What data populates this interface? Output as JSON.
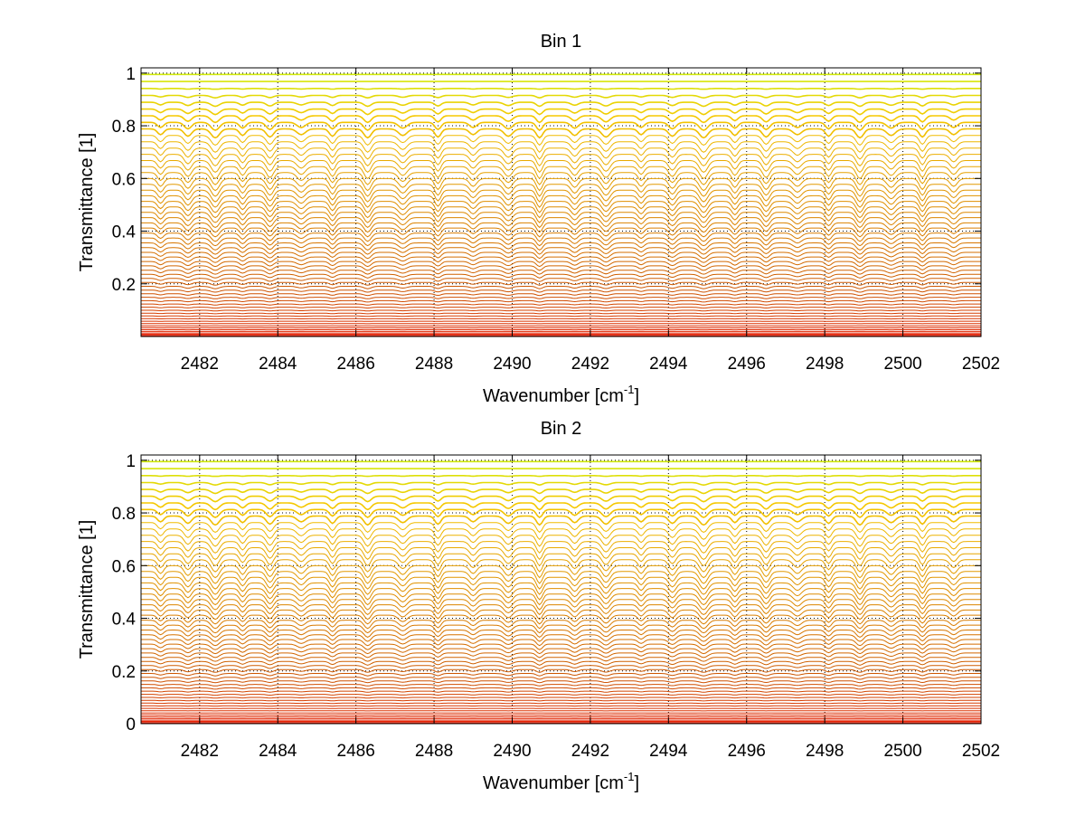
{
  "chart_data": [
    {
      "type": "line",
      "title": "Bin 1",
      "xlabel": "Wavenumber [cm",
      "xlabel_sup": "-1",
      "xlabel_end": "]",
      "ylabel": "Transmittance [1]",
      "xlim": [
        2480.5,
        2502
      ],
      "ylim": [
        0,
        1.02
      ],
      "xticks": [
        2482,
        2484,
        2486,
        2488,
        2490,
        2492,
        2494,
        2496,
        2498,
        2500,
        2502
      ],
      "yticks": [
        0.2,
        0.4,
        0.6,
        0.8,
        1
      ],
      "ytick_labels": [
        "0.2",
        "0.4",
        "0.6",
        "0.8",
        "1"
      ],
      "grid": true,
      "series_count": 60,
      "series_levels": "baseline transmittance of traces range from ~0 (red) to ~1 (yellow/green)",
      "absorption_line_positions": [
        2481.0,
        2481.7,
        2482.4,
        2483.1,
        2483.8,
        2484.6,
        2485.4,
        2486.3,
        2487.2,
        2488.1,
        2489.0,
        2489.9,
        2490.7,
        2491.6,
        2492.4,
        2493.3,
        2494.1,
        2494.9,
        2495.7,
        2496.5,
        2497.3,
        2498.1,
        2498.9,
        2499.7,
        2500.5,
        2501.3
      ]
    },
    {
      "type": "line",
      "title": "Bin 2",
      "xlabel": "Wavenumber [cm",
      "xlabel_sup": "-1",
      "xlabel_end": "]",
      "ylabel": "Transmittance [1]",
      "xlim": [
        2480.5,
        2502
      ],
      "ylim": [
        0,
        1.02
      ],
      "xticks": [
        2482,
        2484,
        2486,
        2488,
        2490,
        2492,
        2494,
        2496,
        2498,
        2500,
        2502
      ],
      "yticks": [
        0,
        0.2,
        0.4,
        0.6,
        0.8,
        1
      ],
      "ytick_labels": [
        "0",
        "0.2",
        "0.4",
        "0.6",
        "0.8",
        "1"
      ],
      "grid": true,
      "series_count": 60,
      "series_levels": "baseline transmittance of traces range from ~0 (red) to ~1 (yellow/green)",
      "absorption_line_positions": [
        2481.0,
        2481.7,
        2482.4,
        2483.1,
        2483.8,
        2484.6,
        2485.4,
        2486.3,
        2487.2,
        2488.1,
        2489.0,
        2489.9,
        2490.7,
        2491.6,
        2492.4,
        2493.3,
        2494.1,
        2494.9,
        2495.7,
        2496.5,
        2497.3,
        2498.1,
        2498.9,
        2499.7,
        2500.5,
        2501.3
      ]
    }
  ]
}
